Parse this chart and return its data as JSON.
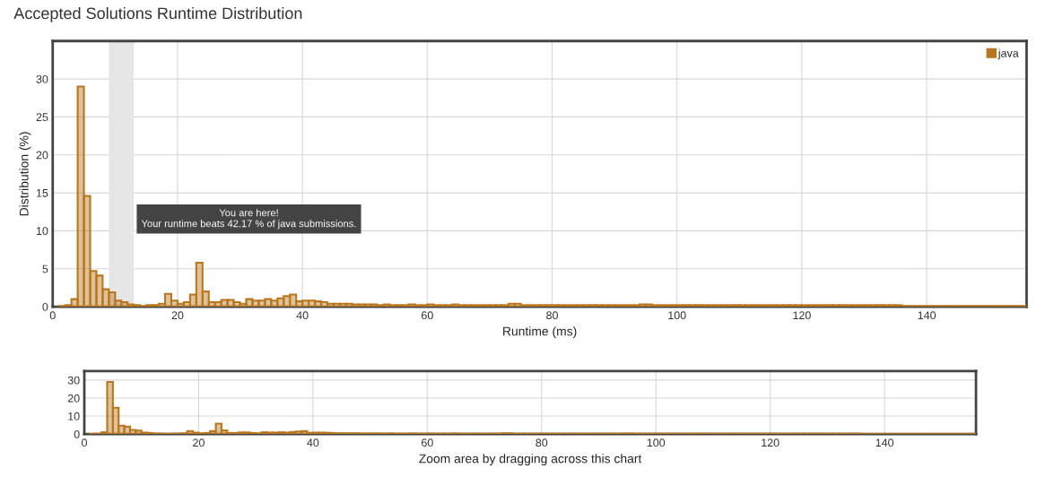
{
  "chart_data": [
    {
      "type": "histogram",
      "title": "Accepted Solutions Runtime Distribution",
      "xlabel": "Runtime (ms)",
      "ylabel": "Distribution (%)",
      "bins": [
        1,
        2,
        3,
        4,
        5,
        6,
        7,
        8,
        9,
        10,
        11,
        12,
        13,
        14,
        15,
        16,
        17,
        18,
        19,
        20,
        21,
        22,
        23,
        24,
        25,
        26,
        27,
        28,
        29,
        30,
        31,
        32,
        33,
        34,
        35,
        36,
        37,
        38,
        39,
        40,
        41,
        42,
        43,
        44,
        45,
        46,
        47,
        48,
        49,
        50,
        51,
        52,
        53,
        54,
        55,
        56,
        57,
        58,
        59,
        60,
        61,
        62,
        63,
        64,
        65,
        66,
        67,
        68,
        69,
        70,
        71,
        72,
        73,
        74,
        75,
        76,
        77,
        78,
        79,
        80,
        81,
        82,
        83,
        84,
        85,
        86,
        87,
        88,
        89,
        90,
        91,
        92,
        93,
        94,
        95,
        96,
        97,
        98,
        99,
        100,
        101,
        102,
        103,
        104,
        105,
        106,
        107,
        108,
        109,
        110,
        111,
        112,
        113,
        114,
        115,
        116,
        117,
        118,
        119,
        120,
        121,
        122,
        123,
        124,
        125,
        126,
        127,
        128,
        129,
        130,
        131,
        132,
        133,
        134,
        135,
        136,
        137,
        138,
        139,
        140,
        141,
        142,
        143,
        144,
        145,
        146,
        147,
        148,
        149,
        150,
        151,
        152,
        153,
        154,
        155,
        156
      ],
      "series": [
        {
          "name": "java",
          "color": "#b8771e",
          "values": [
            0.1,
            0.2,
            1.0,
            29.0,
            14.6,
            4.7,
            4.1,
            2.3,
            1.9,
            0.8,
            0.6,
            0.3,
            0.2,
            0.1,
            0.2,
            0.2,
            0.4,
            1.7,
            0.8,
            0.4,
            0.6,
            1.6,
            5.8,
            2.0,
            0.6,
            0.6,
            0.9,
            0.9,
            0.6,
            0.4,
            1.0,
            0.8,
            0.8,
            1.0,
            0.8,
            1.1,
            1.4,
            1.6,
            0.7,
            0.8,
            0.8,
            0.7,
            0.6,
            0.4,
            0.4,
            0.4,
            0.4,
            0.3,
            0.3,
            0.3,
            0.3,
            0.2,
            0.3,
            0.2,
            0.2,
            0.2,
            0.3,
            0.2,
            0.2,
            0.3,
            0.2,
            0.2,
            0.2,
            0.3,
            0.2,
            0.2,
            0.2,
            0.2,
            0.2,
            0.2,
            0.2,
            0.2,
            0.4,
            0.4,
            0.2,
            0.2,
            0.2,
            0.2,
            0.2,
            0.2,
            0.2,
            0.2,
            0.2,
            0.2,
            0.2,
            0.2,
            0.2,
            0.2,
            0.2,
            0.2,
            0.2,
            0.2,
            0.2,
            0.3,
            0.3,
            0.2,
            0.2,
            0.2,
            0.2,
            0.2,
            0.2,
            0.2,
            0.2,
            0.2,
            0.2,
            0.2,
            0.2,
            0.2,
            0.2,
            0.2,
            0.2,
            0.2,
            0.2,
            0.2,
            0.2,
            0.2,
            0.2,
            0.2,
            0.2,
            0.2,
            0.2,
            0.2,
            0.2,
            0.2,
            0.2,
            0.2,
            0.2,
            0.2,
            0.2,
            0.2,
            0.2,
            0.2,
            0.2,
            0.2,
            0.2,
            0.1,
            0.1,
            0.1,
            0.1,
            0.1,
            0.1,
            0.1,
            0.1,
            0.1,
            0.1,
            0.1,
            0.1,
            0.1,
            0.1,
            0.1,
            0.1,
            0.1,
            0.1,
            0.1,
            0.1
          ]
        }
      ],
      "xlim": [
        0,
        156
      ],
      "ylim": [
        0,
        35
      ],
      "xticks": [
        0,
        20,
        40,
        60,
        80,
        100,
        120,
        140
      ],
      "yticks": [
        0,
        5,
        10,
        15,
        20,
        25,
        30
      ],
      "grid": true,
      "legend": "top right",
      "bands": [
        {
          "axis": "x",
          "from": 9,
          "to": 13,
          "color": "#e6e6e6"
        }
      ],
      "annotations": [
        "You are here!\nYour runtime beats 42.17 % of java submissions."
      ]
    },
    {
      "type": "histogram",
      "xlabel": "Zoom area by dragging across this chart",
      "bins": [
        1,
        2,
        3,
        4,
        5,
        6,
        7,
        8,
        9,
        10,
        11,
        12,
        13,
        14,
        15,
        16,
        17,
        18,
        19,
        20,
        21,
        22,
        23,
        24,
        25,
        26,
        27,
        28,
        29,
        30,
        31,
        32,
        33,
        34,
        35,
        36,
        37,
        38,
        39,
        40,
        41,
        42,
        43,
        44,
        45,
        46,
        47,
        48,
        49,
        50,
        51,
        52,
        53,
        54,
        55,
        56,
        57,
        58,
        59,
        60,
        61,
        62,
        63,
        64,
        65,
        66,
        67,
        68,
        69,
        70,
        71,
        72,
        73,
        74,
        75,
        76,
        77,
        78,
        79,
        80,
        81,
        82,
        83,
        84,
        85,
        86,
        87,
        88,
        89,
        90,
        91,
        92,
        93,
        94,
        95,
        96,
        97,
        98,
        99,
        100,
        101,
        102,
        103,
        104,
        105,
        106,
        107,
        108,
        109,
        110,
        111,
        112,
        113,
        114,
        115,
        116,
        117,
        118,
        119,
        120,
        121,
        122,
        123,
        124,
        125,
        126,
        127,
        128,
        129,
        130,
        131,
        132,
        133,
        134,
        135,
        136,
        137,
        138,
        139,
        140,
        141,
        142,
        143,
        144,
        145,
        146,
        147,
        148,
        149,
        150,
        151,
        152,
        153,
        154,
        155,
        156
      ],
      "series": [
        {
          "color": "#b8771e",
          "values": [
            0.1,
            0.2,
            1.0,
            29.0,
            14.6,
            4.7,
            4.1,
            2.3,
            1.9,
            0.8,
            0.6,
            0.3,
            0.2,
            0.1,
            0.2,
            0.2,
            0.4,
            1.7,
            0.8,
            0.4,
            0.6,
            1.6,
            5.8,
            2.0,
            0.6,
            0.6,
            0.9,
            0.9,
            0.6,
            0.4,
            1.0,
            0.8,
            0.8,
            1.0,
            0.8,
            1.1,
            1.4,
            1.6,
            0.7,
            0.8,
            0.8,
            0.7,
            0.6,
            0.4,
            0.4,
            0.4,
            0.4,
            0.3,
            0.3,
            0.3,
            0.3,
            0.2,
            0.3,
            0.2,
            0.2,
            0.2,
            0.3,
            0.2,
            0.2,
            0.3,
            0.2,
            0.2,
            0.2,
            0.3,
            0.2,
            0.2,
            0.2,
            0.2,
            0.2,
            0.2,
            0.2,
            0.2,
            0.4,
            0.4,
            0.2,
            0.2,
            0.2,
            0.2,
            0.2,
            0.2,
            0.2,
            0.2,
            0.2,
            0.2,
            0.2,
            0.2,
            0.2,
            0.2,
            0.2,
            0.2,
            0.2,
            0.2,
            0.2,
            0.3,
            0.3,
            0.2,
            0.2,
            0.2,
            0.2,
            0.2,
            0.2,
            0.2,
            0.2,
            0.2,
            0.2,
            0.2,
            0.2,
            0.2,
            0.2,
            0.2,
            0.2,
            0.2,
            0.2,
            0.2,
            0.2,
            0.2,
            0.2,
            0.2,
            0.2,
            0.2,
            0.2,
            0.2,
            0.2,
            0.2,
            0.2,
            0.2,
            0.2,
            0.2,
            0.2,
            0.2,
            0.2,
            0.2,
            0.2,
            0.2,
            0.2,
            0.1,
            0.1,
            0.1,
            0.1,
            0.1,
            0.1,
            0.1,
            0.1,
            0.1,
            0.1,
            0.1,
            0.1,
            0.1,
            0.1,
            0.1,
            0.1,
            0.1,
            0.1,
            0.1,
            0.1
          ]
        }
      ],
      "xlim": [
        0,
        156
      ],
      "ylim": [
        0,
        35
      ],
      "xticks": [
        0,
        20,
        40,
        60,
        80,
        100,
        120,
        140
      ],
      "yticks": [
        0,
        10,
        20,
        30
      ],
      "grid": true
    }
  ]
}
